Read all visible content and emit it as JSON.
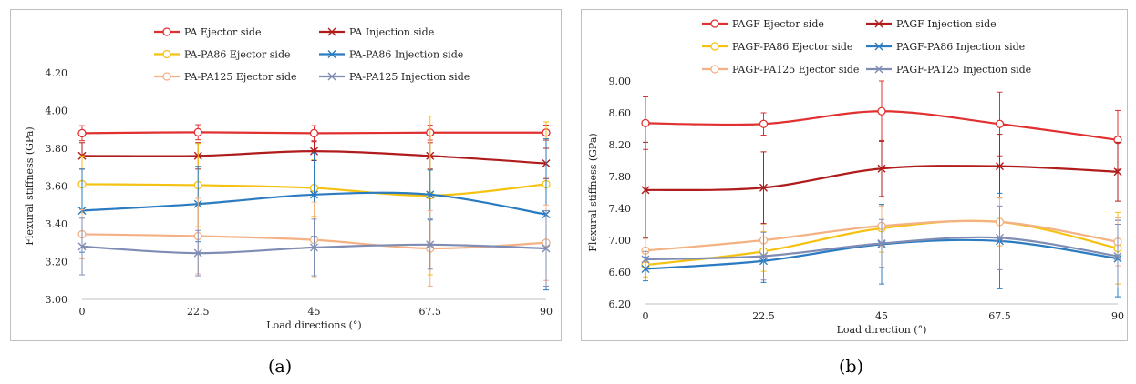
{
  "captions": [
    "(a)",
    "(b)"
  ],
  "chart_data": [
    {
      "type": "line",
      "xlabel": "Load directions (°)",
      "ylabel": "Flexural stiffness (GPa)",
      "x": [
        0,
        22.5,
        45,
        67.5,
        90
      ],
      "x_tick_labels": [
        "0",
        "22.5",
        "45",
        "67.5",
        "90"
      ],
      "ylim": [
        3.0,
        4.2
      ],
      "y_ticks": [
        "3.00",
        "3.20",
        "3.40",
        "3.60",
        "3.80",
        "4.00",
        "4.20"
      ],
      "grid": false,
      "legend_position": "top",
      "series": [
        {
          "name": "PA Ejector side",
          "color": "#e03030",
          "marker": "circle",
          "values": [
            3.88,
            3.885,
            3.88,
            3.883,
            3.883
          ],
          "errors": [
            0.04,
            0.04,
            0.04,
            0.04,
            0.04
          ]
        },
        {
          "name": "PA Injection side",
          "color": "#b01c1c",
          "marker": "x",
          "values": [
            3.76,
            3.76,
            3.785,
            3.76,
            3.72
          ],
          "errors": [
            0.07,
            0.07,
            0.05,
            0.07,
            0.08
          ]
        },
        {
          "name": "PA-PA86 Ejector side",
          "color": "#f5c211",
          "marker": "circle",
          "values": [
            3.61,
            3.605,
            3.59,
            3.55,
            3.61
          ],
          "errors": [
            0.15,
            0.22,
            0.15,
            0.42,
            0.33
          ]
        },
        {
          "name": "PA-PA86 Injection side",
          "color": "#2a7bc0",
          "marker": "x",
          "values": [
            3.47,
            3.505,
            3.555,
            3.555,
            3.45
          ],
          "errors": [
            0.22,
            0.2,
            0.22,
            0.13,
            0.4
          ]
        },
        {
          "name": "PA-PA125 Ejector side",
          "color": "#f4b183",
          "marker": "circle",
          "values": [
            3.345,
            3.335,
            3.315,
            3.27,
            3.3
          ],
          "errors": [
            0.13,
            0.2,
            0.2,
            0.2,
            0.2
          ]
        },
        {
          "name": "PA-PA125 Injection side",
          "color": "#7f8cb4",
          "marker": "x",
          "values": [
            3.28,
            3.245,
            3.275,
            3.29,
            3.27
          ],
          "errors": [
            0.15,
            0.12,
            0.15,
            0.13,
            0.2
          ]
        }
      ]
    },
    {
      "type": "line",
      "xlabel": "Load direction (°)",
      "ylabel": "Flexural stiffness (GPa)",
      "x": [
        0,
        22.5,
        45,
        67.5,
        90
      ],
      "x_tick_labels": [
        "0",
        "22.5",
        "45",
        "67.5",
        "90"
      ],
      "ylim": [
        6.2,
        9.0
      ],
      "y_ticks": [
        "6.20",
        "6.60",
        "7.00",
        "7.40",
        "7.80",
        "8.20",
        "8.60",
        "9.00"
      ],
      "grid": false,
      "legend_position": "top",
      "series": [
        {
          "name": "PAGF Ejector side",
          "color": "#e03030",
          "marker": "circle",
          "values": [
            8.47,
            8.46,
            8.62,
            8.46,
            8.26
          ],
          "errors": [
            0.33,
            0.14,
            0.38,
            0.4,
            0.37
          ]
        },
        {
          "name": "PAGF Injection side",
          "color": "#b01c1c",
          "marker": "x",
          "values": [
            7.63,
            7.66,
            7.9,
            7.93,
            7.86
          ],
          "errors": [
            0.6,
            0.45,
            0.35,
            0.4,
            0.37
          ]
        },
        {
          "name": "PAGF-PA86 Ejector side",
          "color": "#f5c211",
          "marker": "circle",
          "values": [
            6.69,
            6.86,
            7.15,
            7.23,
            6.9
          ],
          "errors": [
            0.15,
            0.25,
            0.3,
            0.3,
            0.45
          ]
        },
        {
          "name": "PAGF-PA86 Injection side",
          "color": "#2a7bc0",
          "marker": "x",
          "values": [
            6.64,
            6.74,
            6.95,
            6.99,
            6.77
          ],
          "errors": [
            0.15,
            0.27,
            0.5,
            0.6,
            0.48
          ]
        },
        {
          "name": "PAGF-PA125 Ejector side",
          "color": "#f4b183",
          "marker": "circle",
          "values": [
            6.87,
            7.0,
            7.18,
            7.23,
            6.98
          ],
          "errors": [
            0.15,
            0.2,
            0.25,
            0.3,
            0.3
          ]
        },
        {
          "name": "PAGF-PA125 Injection side",
          "color": "#7f8cb4",
          "marker": "x",
          "values": [
            6.76,
            6.8,
            6.96,
            7.03,
            6.8
          ],
          "errors": [
            0.1,
            0.3,
            0.3,
            0.4,
            0.4
          ]
        }
      ]
    }
  ]
}
